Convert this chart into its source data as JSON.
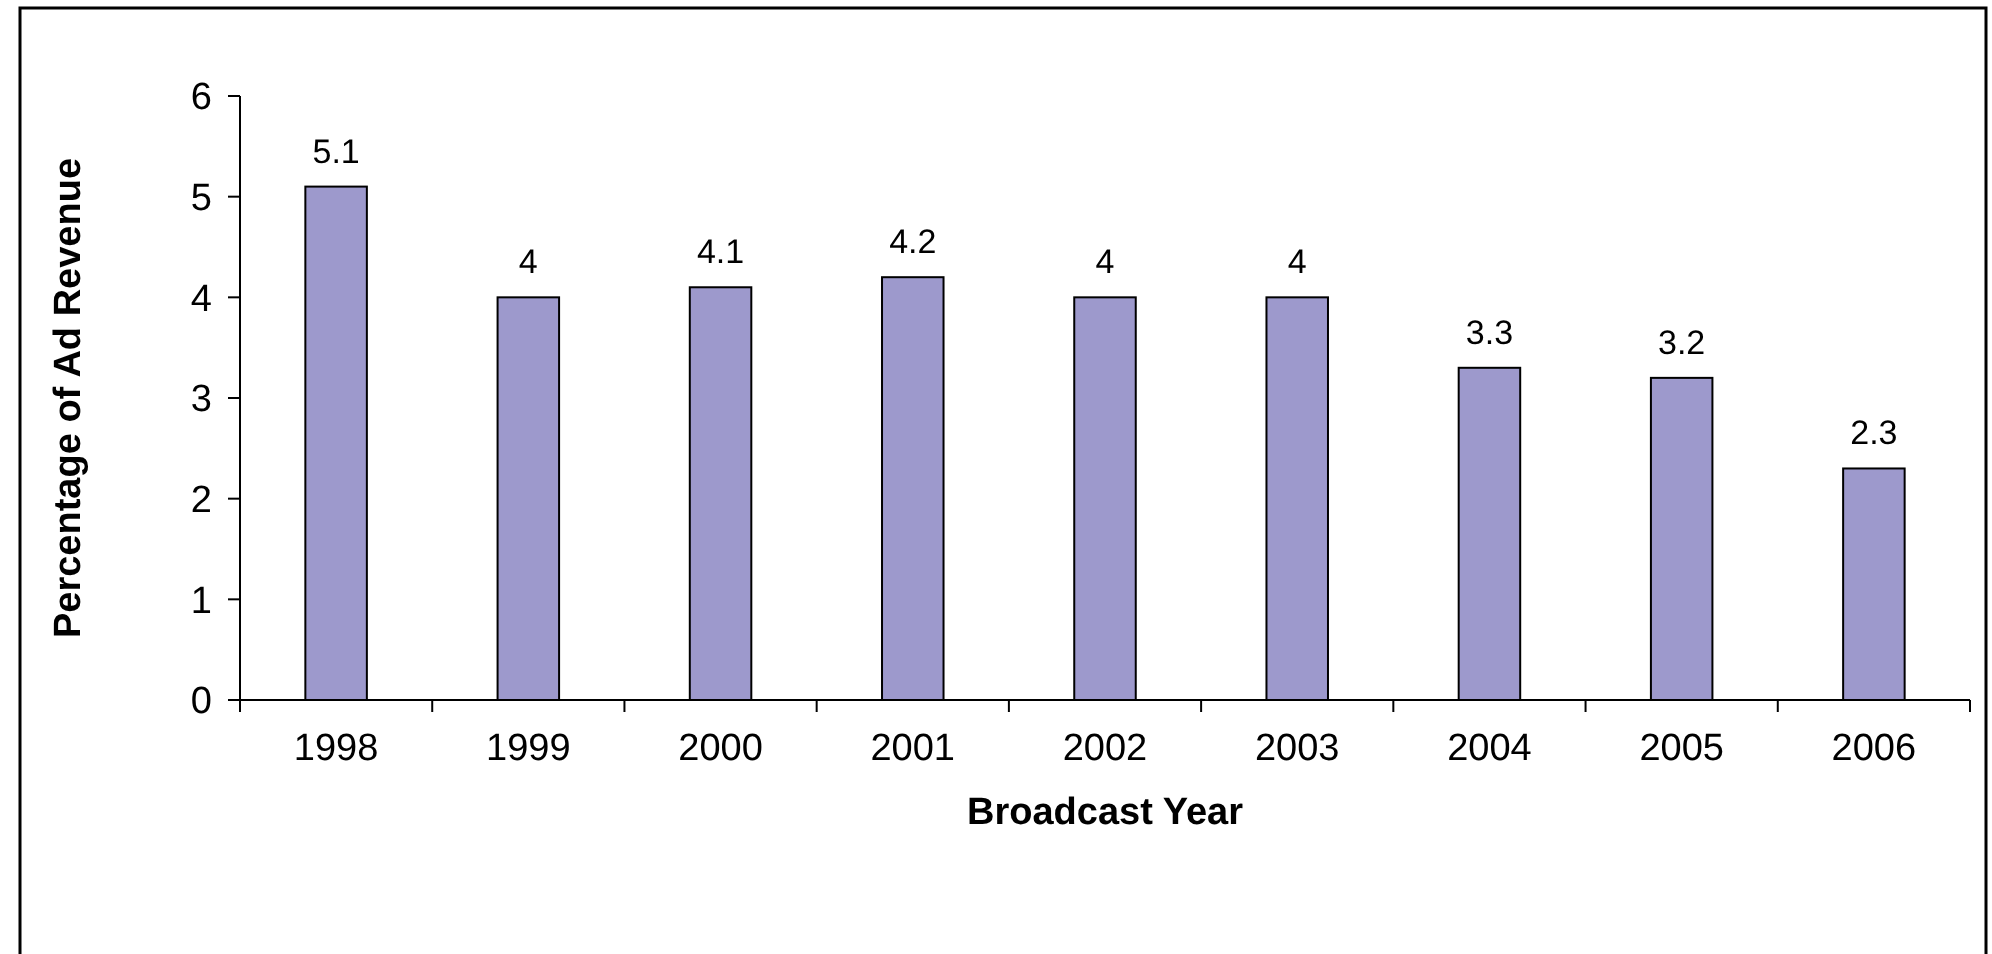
{
  "chart_data": {
    "type": "bar",
    "xlabel": "Broadcast Year",
    "ylabel": "Percentage of Ad Revenue",
    "categories": [
      "1998",
      "1999",
      "2000",
      "2001",
      "2002",
      "2003",
      "2004",
      "2005",
      "2006"
    ],
    "values": [
      5.1,
      4,
      4.1,
      4.2,
      4,
      4,
      3.3,
      3.2,
      2.3
    ],
    "color": "#9d99cc",
    "ylim": [
      0,
      6
    ],
    "yticks": [
      0,
      1,
      2,
      3,
      4,
      5,
      6
    ],
    "data_labels": true,
    "grid": false
  }
}
